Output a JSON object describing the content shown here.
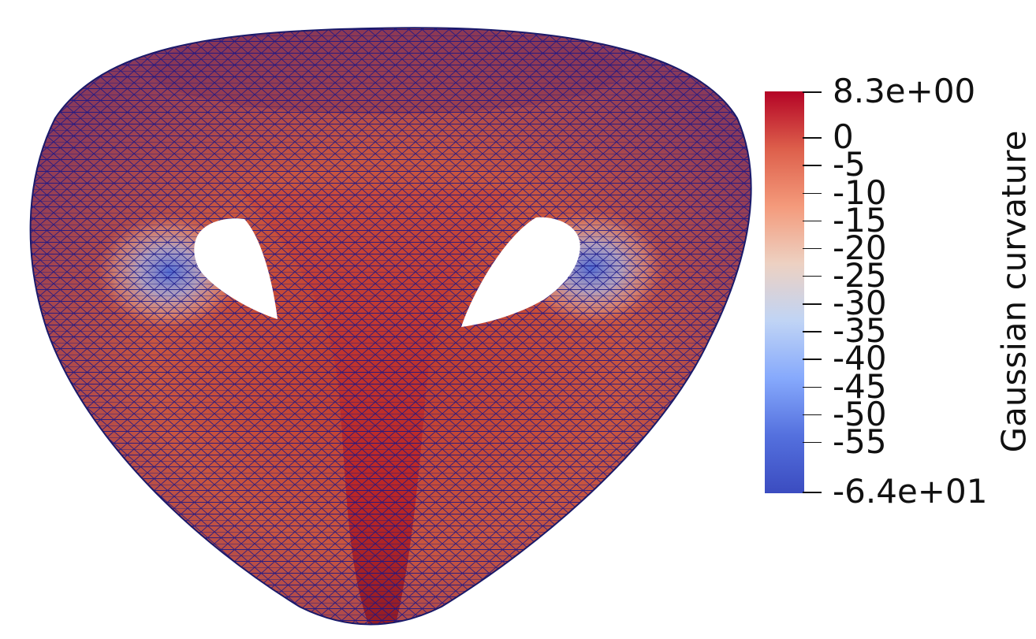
{
  "view": {
    "background": "#ffffff",
    "mesh_edge_color": "#0a0a80"
  },
  "colorbar": {
    "title": "Gaussian curvature",
    "max_label": "8.3e+00",
    "min_label": "-6.4e+01",
    "range": [
      -64,
      8.3
    ],
    "ticks": [
      0,
      -5,
      -10,
      -15,
      -20,
      -25,
      -30,
      -35,
      -40,
      -45,
      -50,
      -55
    ],
    "tick_labels": [
      "0",
      "-5",
      "-10",
      "-15",
      "-20",
      "-25",
      "-30",
      "-35",
      "-40",
      "-45",
      "-50",
      "-55"
    ],
    "colormap": "coolwarm",
    "colormap_stops": [
      "#b40426",
      "#dd5f4b",
      "#f49a7b",
      "#edd1c2",
      "#c0d4f5",
      "#86a9fc",
      "#5470de",
      "#3b4cc0"
    ]
  }
}
